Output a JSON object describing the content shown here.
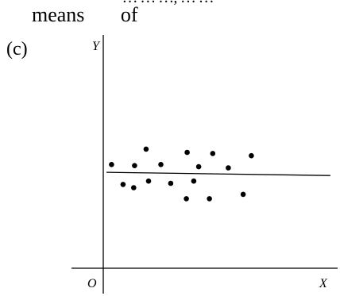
{
  "header_text": {
    "cut_line": "… … …, … …",
    "line1": "means       of"
  },
  "panel_label": "(c)",
  "chart_data": {
    "type": "scatter",
    "title": "",
    "xlabel": "X",
    "ylabel": "Y",
    "origin_label": "O",
    "xlim": [
      0,
      14
    ],
    "ylim": [
      0,
      10
    ],
    "grid": false,
    "legend": "none",
    "points": [
      {
        "x": 0.5,
        "y": 4.7
      },
      {
        "x": 1.2,
        "y": 3.8
      },
      {
        "x": 1.85,
        "y": 3.65
      },
      {
        "x": 1.9,
        "y": 4.65
      },
      {
        "x": 2.6,
        "y": 5.4
      },
      {
        "x": 2.75,
        "y": 3.95
      },
      {
        "x": 3.5,
        "y": 4.7
      },
      {
        "x": 4.1,
        "y": 3.85
      },
      {
        "x": 5.05,
        "y": 3.15
      },
      {
        "x": 5.1,
        "y": 5.25
      },
      {
        "x": 5.5,
        "y": 3.95
      },
      {
        "x": 5.8,
        "y": 4.6
      },
      {
        "x": 6.45,
        "y": 3.15
      },
      {
        "x": 6.65,
        "y": 5.2
      },
      {
        "x": 7.6,
        "y": 4.55
      },
      {
        "x": 8.5,
        "y": 3.35
      },
      {
        "x": 9.0,
        "y": 5.1
      }
    ],
    "trend_line": {
      "x": [
        0.2,
        13.8
      ],
      "y": [
        4.35,
        4.2
      ]
    }
  },
  "colors": {
    "ink": "#000000",
    "background": "#ffffff"
  }
}
